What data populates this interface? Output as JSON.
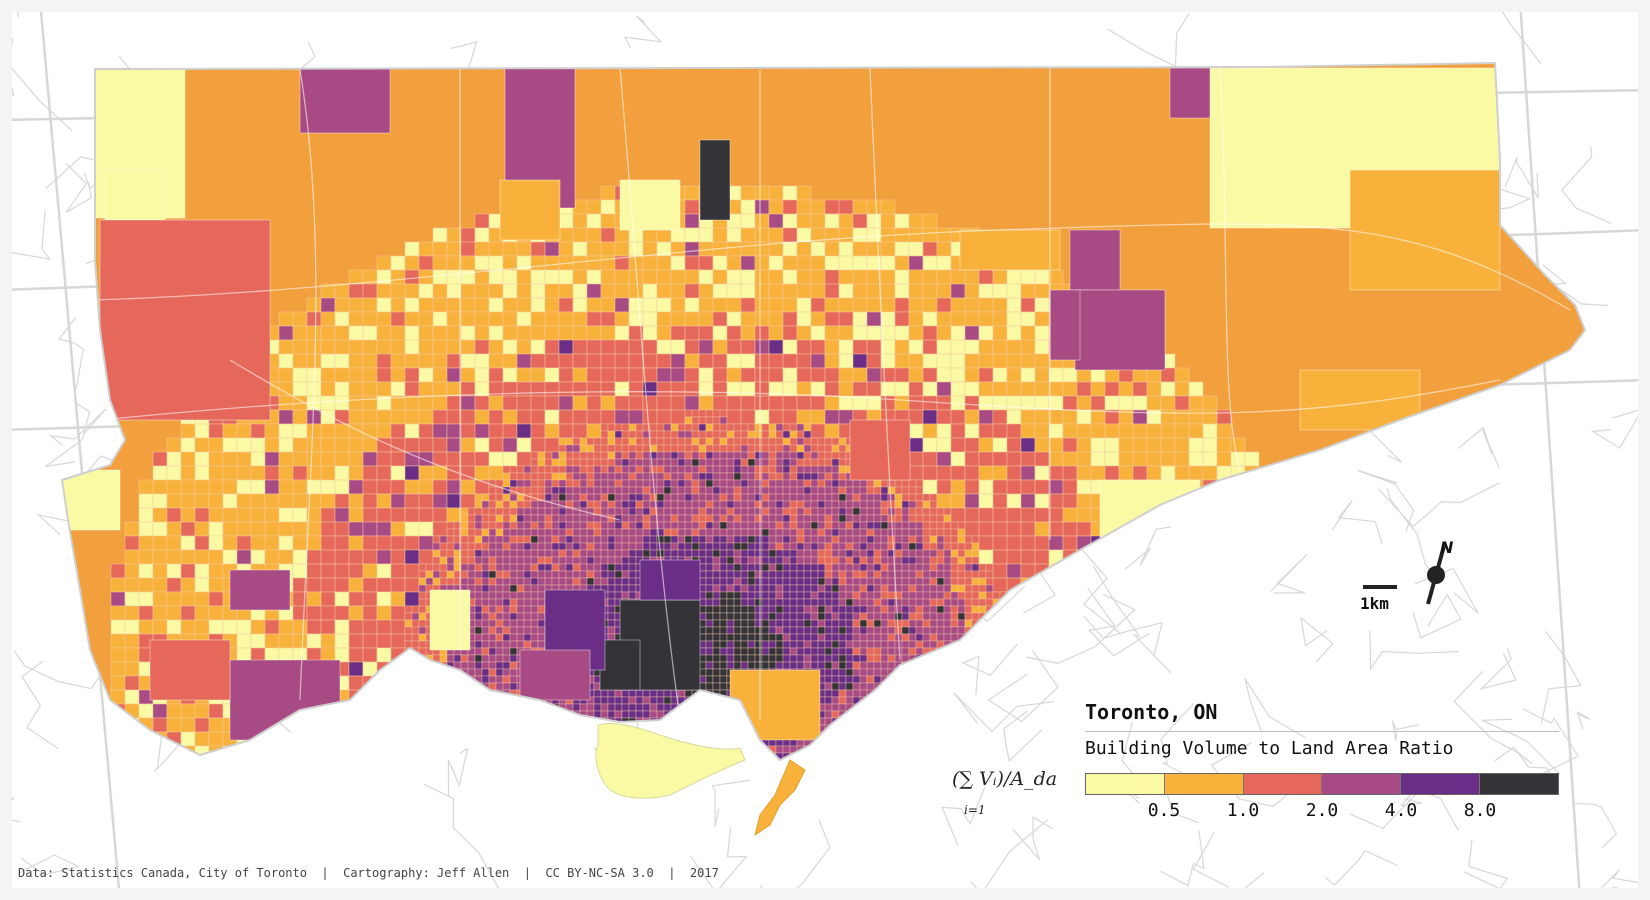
{
  "title": "Toronto, ON",
  "subtitle": "Building Volume to Land Area Ratio",
  "formula": {
    "main": "(∑ Vᵢ)/A_da",
    "sum_index": "i=1"
  },
  "legend": {
    "class_colors": [
      "#fafaa4",
      "#f8b13a",
      "#e5685a",
      "#a84a84",
      "#6a2e86",
      "#333338"
    ],
    "breaks": [
      "0.5",
      "1.0",
      "2.0",
      "4.0",
      "8.0"
    ]
  },
  "scale_label": "1km",
  "north_label": "N",
  "credits": "Data: Statistics Canada, City of Toronto  |  Cartography: Jeff Allen  |  CC BY-NC-SA 3.0  |  2017",
  "colors": {
    "background": "#f4f4f4",
    "map_background": "#ffffff",
    "lake": "#ffffff",
    "roads": "#d7d7d7"
  }
}
